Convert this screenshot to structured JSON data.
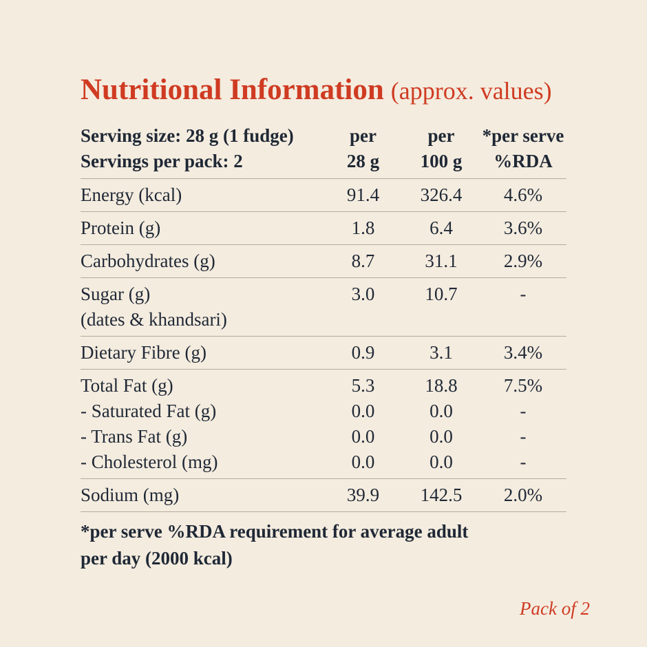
{
  "colors": {
    "background": "#f4ecdf",
    "accent_red": "#cf3b22",
    "text_dark": "#1f2835",
    "divider": "#b5ab9b"
  },
  "title": {
    "main": "Nutritional Information",
    "suffix": "(approx. values)"
  },
  "table": {
    "header": {
      "serving_size": "Serving size: 28 g (1 fudge)",
      "servings_per_pack": "Servings per pack: 2",
      "columns": [
        {
          "line1": "per",
          "line2": "28 g"
        },
        {
          "line1": "per",
          "line2": "100 g"
        },
        {
          "line1": "*per serve",
          "line2": "%RDA"
        }
      ]
    },
    "rows": [
      {
        "label_lines": [
          "Energy (kcal)"
        ],
        "per_28g": [
          "91.4"
        ],
        "per_100g": [
          "326.4"
        ],
        "rda": [
          "4.6%"
        ]
      },
      {
        "label_lines": [
          "Protein (g)"
        ],
        "per_28g": [
          "1.8"
        ],
        "per_100g": [
          "6.4"
        ],
        "rda": [
          "3.6%"
        ]
      },
      {
        "label_lines": [
          "Carbohydrates (g)"
        ],
        "per_28g": [
          "8.7"
        ],
        "per_100g": [
          "31.1"
        ],
        "rda": [
          "2.9%"
        ]
      },
      {
        "label_lines": [
          "Sugar (g)",
          "(dates & khandsari)"
        ],
        "per_28g": [
          "3.0"
        ],
        "per_100g": [
          "10.7"
        ],
        "rda": [
          "-"
        ]
      },
      {
        "label_lines": [
          "Dietary Fibre (g)"
        ],
        "per_28g": [
          "0.9"
        ],
        "per_100g": [
          "3.1"
        ],
        "rda": [
          "3.4%"
        ]
      },
      {
        "label_lines": [
          "Total Fat (g)",
          "- Saturated Fat (g)",
          "- Trans Fat (g)",
          "- Cholesterol (mg)"
        ],
        "per_28g": [
          "5.3",
          "0.0",
          "0.0",
          "0.0"
        ],
        "per_100g": [
          "18.8",
          "0.0",
          "0.0",
          "0.0"
        ],
        "rda": [
          "7.5%",
          "-",
          "-",
          "-"
        ]
      },
      {
        "label_lines": [
          "Sodium (mg)"
        ],
        "per_28g": [
          "39.9"
        ],
        "per_100g": [
          "142.5"
        ],
        "rda": [
          "2.0%"
        ]
      }
    ]
  },
  "footnote": {
    "lines": [
      "*per serve %RDA requirement for average adult",
      "per day (2000 kcal)"
    ]
  },
  "pack_label": "Pack of 2"
}
